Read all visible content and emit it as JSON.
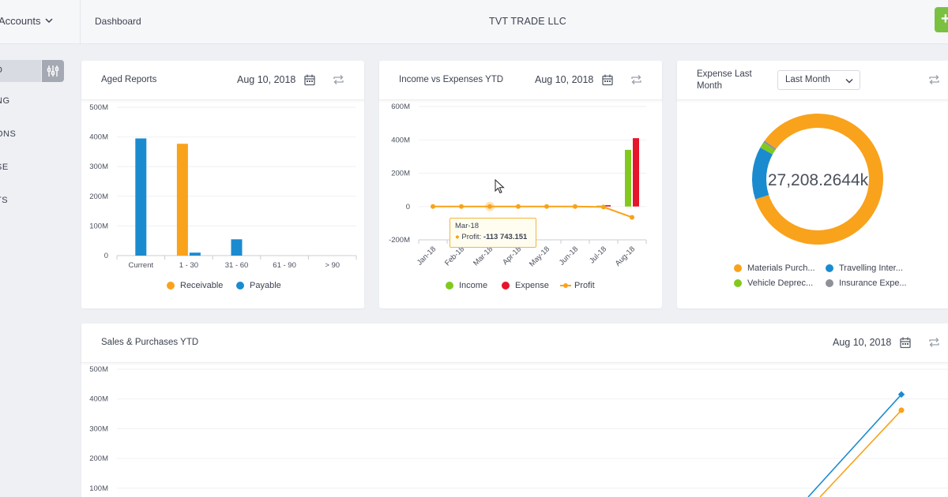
{
  "header": {
    "accounts_label": "Accounts",
    "breadcrumb": "Dashboard",
    "company": "TVT TRADE LLC",
    "add_label": "+"
  },
  "sidebar": {
    "items": [
      "D",
      "NG",
      "ONS",
      "SE",
      "TS"
    ]
  },
  "aged_reports": {
    "title": "Aged Reports",
    "date": "Aug 10, 2018",
    "legend": [
      "Receivable",
      "Payable"
    ]
  },
  "income_expenses": {
    "title": "Income vs Expenses YTD",
    "date": "Aug 10, 2018",
    "legend": [
      "Income",
      "Expense",
      "Profit"
    ],
    "tooltip": {
      "period": "Mar-18",
      "label": "Profit:",
      "value": "-113 743.151"
    }
  },
  "expense_last_month": {
    "title_line1": "Expense Last",
    "title_line2": "Month",
    "period": "Last Month",
    "center_value": "27,208.2644k",
    "legend": [
      "Materials Purch...",
      "Travelling Inter...",
      "Vehicle Deprec...",
      "Insurance Expe..."
    ]
  },
  "sales_purchases": {
    "title": "Sales & Purchases YTD",
    "date": "Aug 10, 2018"
  },
  "colors": {
    "orange": "#f9a21b",
    "blue": "#1b8bd0",
    "green": "#82c91e",
    "red": "#e6152a",
    "gray": "#8e9197",
    "accent_green": "#7ac142"
  },
  "chart_data": [
    {
      "type": "bar",
      "title": "",
      "categories": [
        "Current",
        "1 - 30",
        "31 - 60",
        "61 - 90",
        "> 90"
      ],
      "series": [
        {
          "name": "Receivable",
          "values": [
            0,
            377,
            0,
            0,
            0
          ]
        },
        {
          "name": "Payable",
          "values": [
            395,
            10,
            55,
            0,
            0
          ]
        }
      ],
      "y_ticks": [
        "0",
        "100M",
        "200M",
        "300M",
        "400M",
        "500M"
      ],
      "ylim": [
        0,
        500
      ],
      "y_unit": "M",
      "legend_position": "bottom"
    },
    {
      "type": "bar",
      "title": "",
      "categories": [
        "Jan-18",
        "Feb-18",
        "Mar-18",
        "Apr-18",
        "May-18",
        "Jun-18",
        "Jul-18",
        "Aug-18"
      ],
      "series": [
        {
          "name": "Income",
          "type": "bar",
          "values": [
            0,
            0,
            0,
            0,
            0,
            0,
            5,
            340
          ]
        },
        {
          "name": "Expense",
          "type": "bar",
          "values": [
            0,
            0,
            0,
            0,
            0,
            0,
            8,
            410
          ]
        },
        {
          "name": "Profit",
          "type": "line",
          "values": [
            0,
            0,
            0,
            0,
            0,
            0,
            -3,
            -65
          ]
        }
      ],
      "y_ticks": [
        "-200M",
        "0",
        "200M",
        "400M",
        "600M"
      ],
      "ylim": [
        -200,
        600
      ],
      "y_unit": "M",
      "legend_position": "bottom"
    },
    {
      "type": "pie",
      "title": "",
      "categories": [
        "Materials Purch...",
        "Travelling Inter...",
        "Vehicle Deprec...",
        "Insurance Expe..."
      ],
      "values": [
        85,
        13,
        1.5,
        0.5
      ],
      "value_unit": "%",
      "legend_position": "bottom"
    },
    {
      "type": "line",
      "title": "",
      "y_ticks": [
        "100M",
        "200M",
        "300M",
        "400M",
        "500M"
      ],
      "ylim": [
        100,
        500
      ],
      "y_unit": "M",
      "series": [
        {
          "name": "",
          "values": [
            415
          ]
        },
        {
          "name": "",
          "values": [
            362
          ]
        }
      ]
    }
  ]
}
